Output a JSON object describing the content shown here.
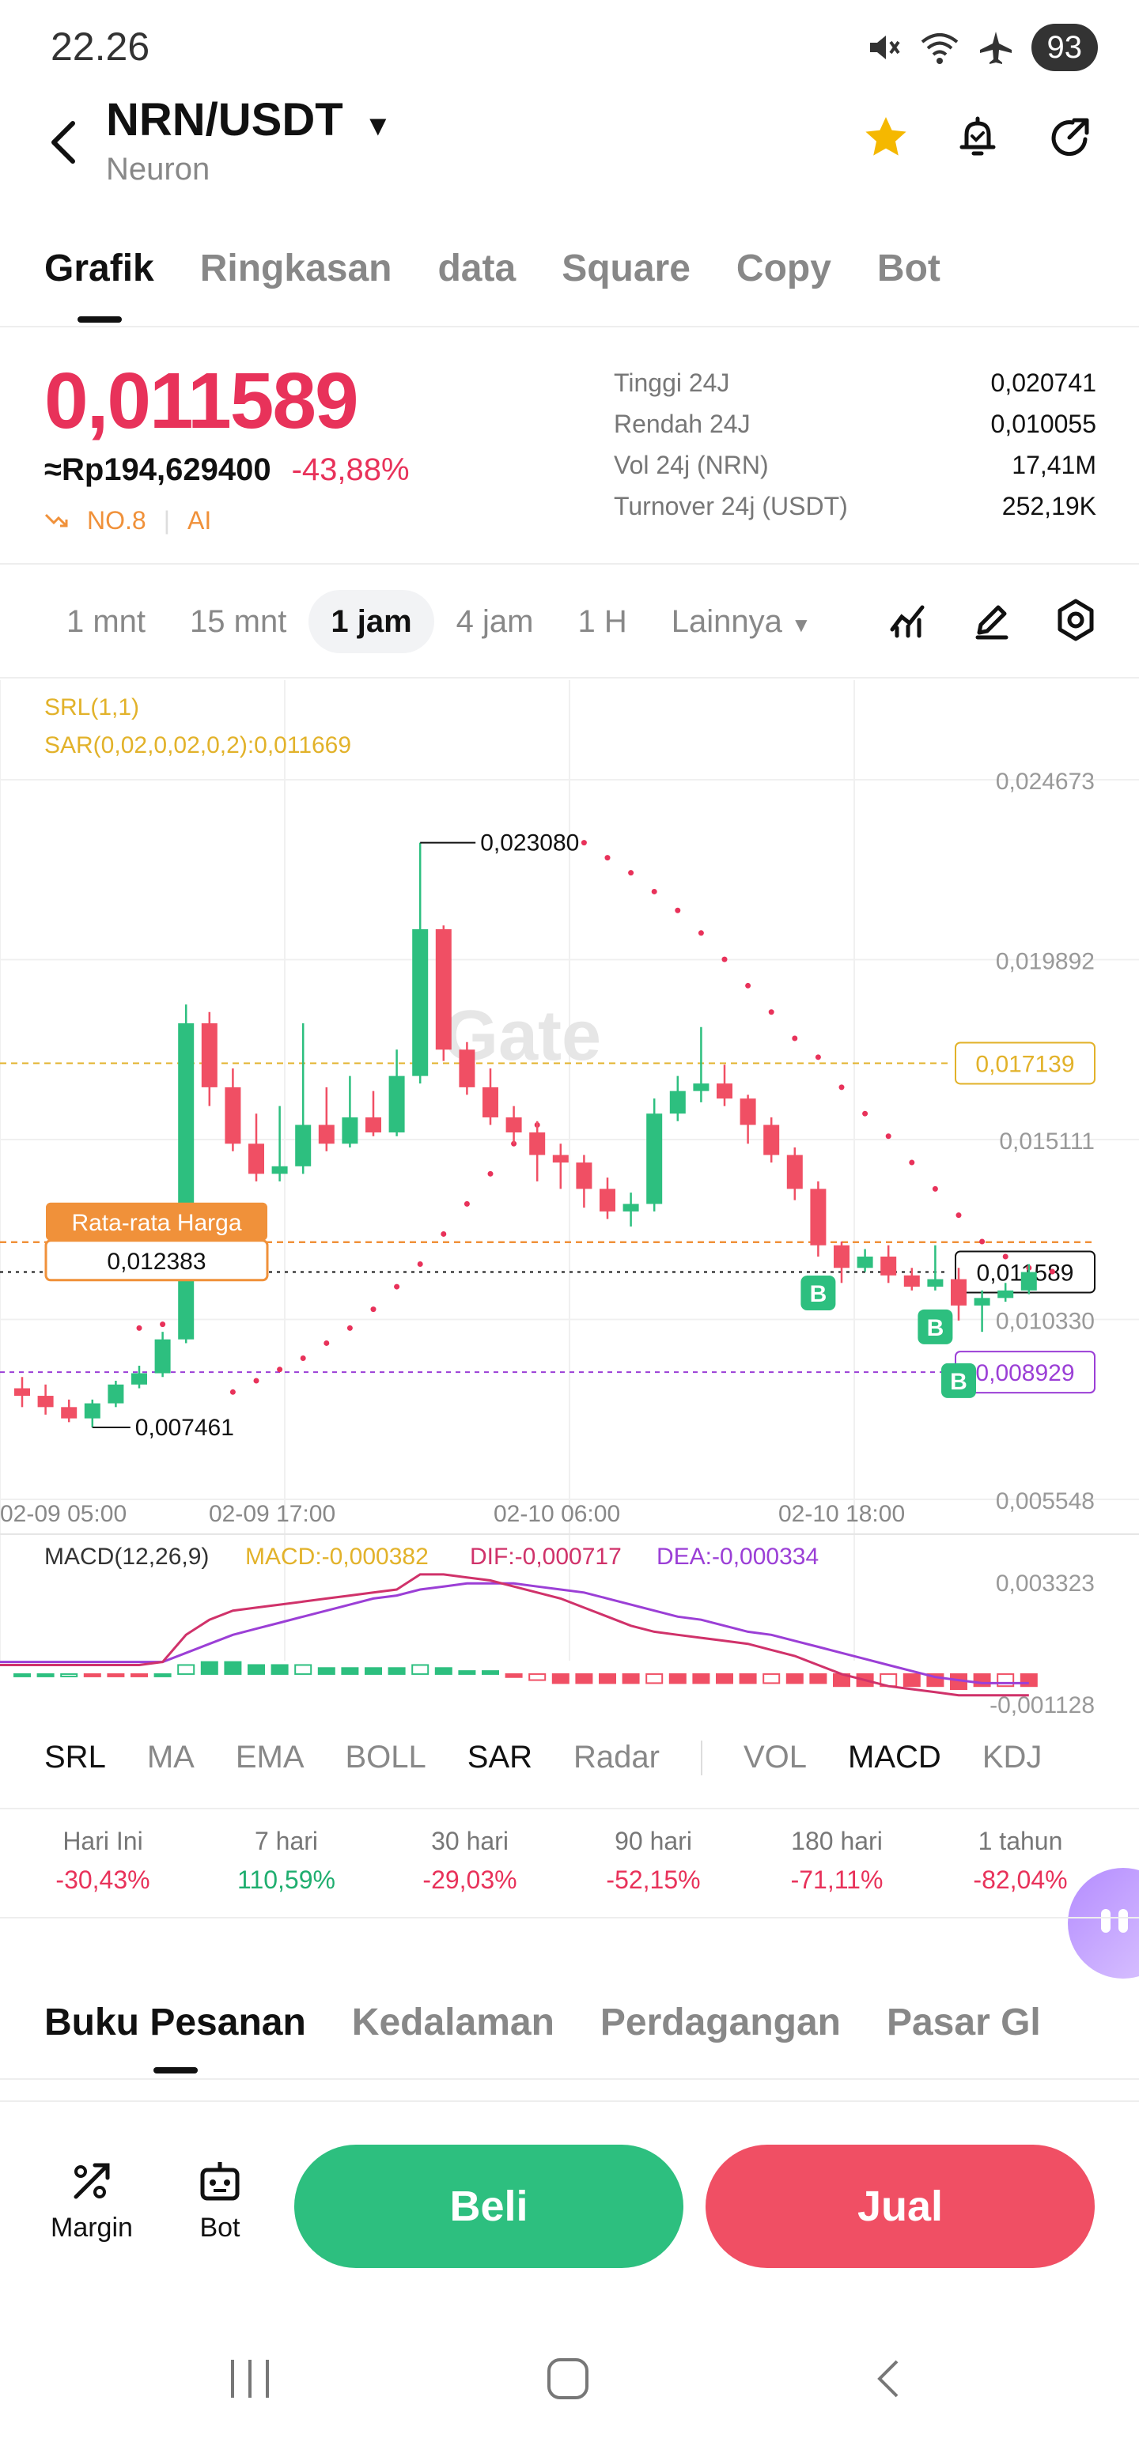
{
  "status_bar": {
    "time": "22.26",
    "battery": "93",
    "icons": [
      "mute-icon",
      "wifi-icon",
      "airplane-icon"
    ]
  },
  "header": {
    "pair": "NRN/USDT",
    "subtitle": "Neuron",
    "icons": [
      "star-icon",
      "bell-icon",
      "share-icon"
    ]
  },
  "tabs": [
    "Grafik",
    "Ringkasan",
    "data",
    "Square",
    "Copy",
    "Bot"
  ],
  "price": {
    "last": "0,011589",
    "fiat": "≈Rp194,629400",
    "change": "-43,88%",
    "rank": "NO.8",
    "ai": "AI"
  },
  "stats": [
    {
      "label": "Tinggi 24J",
      "value": "0,020741"
    },
    {
      "label": "Rendah 24J",
      "value": "0,010055"
    },
    {
      "label": "Vol 24j (NRN)",
      "value": "17,41M"
    },
    {
      "label": "Turnover 24j (USDT)",
      "value": "252,19K"
    }
  ],
  "intervals": {
    "items": [
      "1 mnt",
      "15 mnt",
      "1 jam",
      "4 jam",
      "1 H"
    ],
    "active": "1 jam",
    "more": "Lainnya"
  },
  "chart": {
    "indicator_srl": "SRL(1,1)",
    "indicator_sar": "SAR(0,02,0,02,0,2):0,011669",
    "y_ticks": [
      "0,024673",
      "0,019892",
      "0,015111",
      "0,010330",
      "0,005548"
    ],
    "y_tick_values": [
      0.024673,
      0.019892,
      0.015111,
      0.01033,
      0.005548
    ],
    "x_ticks": [
      "02-09 05:00",
      "02-09 17:00",
      "02-10 06:00",
      "02-10 18:00"
    ],
    "high_label": "0,023080",
    "low_label": "0,007461",
    "level_yellow": "0,017139",
    "level_current": "0,011589",
    "level_purple": "0,008929",
    "avg_price_title": "Rata-rata Harga",
    "avg_price_value": "0,012383",
    "buy_marker": "B",
    "watermark": "Gate"
  },
  "chart_data": {
    "type": "candlestick",
    "ylim": [
      0.005548,
      0.024673
    ],
    "candles": [
      {
        "o": 0.0085,
        "h": 0.0088,
        "l": 0.008,
        "c": 0.0083
      },
      {
        "o": 0.0083,
        "h": 0.0086,
        "l": 0.0078,
        "c": 0.008
      },
      {
        "o": 0.008,
        "h": 0.0082,
        "l": 0.0076,
        "c": 0.0077
      },
      {
        "o": 0.0077,
        "h": 0.0082,
        "l": 0.007461,
        "c": 0.0081
      },
      {
        "o": 0.0081,
        "h": 0.0087,
        "l": 0.008,
        "c": 0.0086
      },
      {
        "o": 0.0086,
        "h": 0.0091,
        "l": 0.0085,
        "c": 0.0089
      },
      {
        "o": 0.0089,
        "h": 0.01,
        "l": 0.0088,
        "c": 0.0098
      },
      {
        "o": 0.0098,
        "h": 0.0187,
        "l": 0.0097,
        "c": 0.0182
      },
      {
        "o": 0.0182,
        "h": 0.0185,
        "l": 0.016,
        "c": 0.0165
      },
      {
        "o": 0.0165,
        "h": 0.017,
        "l": 0.0148,
        "c": 0.015
      },
      {
        "o": 0.015,
        "h": 0.0158,
        "l": 0.014,
        "c": 0.0142
      },
      {
        "o": 0.0142,
        "h": 0.016,
        "l": 0.014,
        "c": 0.0144
      },
      {
        "o": 0.0144,
        "h": 0.0182,
        "l": 0.0142,
        "c": 0.0155
      },
      {
        "o": 0.0155,
        "h": 0.0165,
        "l": 0.0148,
        "c": 0.015
      },
      {
        "o": 0.015,
        "h": 0.0168,
        "l": 0.0149,
        "c": 0.0157
      },
      {
        "o": 0.0157,
        "h": 0.0164,
        "l": 0.0152,
        "c": 0.0153
      },
      {
        "o": 0.0153,
        "h": 0.0175,
        "l": 0.0152,
        "c": 0.0168
      },
      {
        "o": 0.0168,
        "h": 0.023,
        "l": 0.0166,
        "c": 0.0207
      },
      {
        "o": 0.0207,
        "h": 0.0208,
        "l": 0.0172,
        "c": 0.0175
      },
      {
        "o": 0.0175,
        "h": 0.0177,
        "l": 0.0163,
        "c": 0.0165
      },
      {
        "o": 0.0165,
        "h": 0.017,
        "l": 0.0155,
        "c": 0.0157
      },
      {
        "o": 0.0157,
        "h": 0.016,
        "l": 0.015,
        "c": 0.0153
      },
      {
        "o": 0.0153,
        "h": 0.0156,
        "l": 0.014,
        "c": 0.0147
      },
      {
        "o": 0.0147,
        "h": 0.015,
        "l": 0.0138,
        "c": 0.0145
      },
      {
        "o": 0.0145,
        "h": 0.0147,
        "l": 0.0133,
        "c": 0.0138
      },
      {
        "o": 0.0138,
        "h": 0.0141,
        "l": 0.013,
        "c": 0.0132
      },
      {
        "o": 0.0132,
        "h": 0.0137,
        "l": 0.0128,
        "c": 0.0134
      },
      {
        "o": 0.0134,
        "h": 0.0162,
        "l": 0.0132,
        "c": 0.0158
      },
      {
        "o": 0.0158,
        "h": 0.0168,
        "l": 0.0156,
        "c": 0.0164
      },
      {
        "o": 0.0164,
        "h": 0.0181,
        "l": 0.0161,
        "c": 0.0166
      },
      {
        "o": 0.0166,
        "h": 0.0171,
        "l": 0.016,
        "c": 0.0162
      },
      {
        "o": 0.0162,
        "h": 0.0163,
        "l": 0.015,
        "c": 0.0155
      },
      {
        "o": 0.0155,
        "h": 0.0157,
        "l": 0.0145,
        "c": 0.0147
      },
      {
        "o": 0.0147,
        "h": 0.0149,
        "l": 0.0135,
        "c": 0.0138
      },
      {
        "o": 0.0138,
        "h": 0.014,
        "l": 0.012,
        "c": 0.0123
      },
      {
        "o": 0.0123,
        "h": 0.0124,
        "l": 0.0113,
        "c": 0.0117
      },
      {
        "o": 0.0117,
        "h": 0.0122,
        "l": 0.0116,
        "c": 0.012
      },
      {
        "o": 0.012,
        "h": 0.0123,
        "l": 0.0113,
        "c": 0.0115
      },
      {
        "o": 0.0115,
        "h": 0.0117,
        "l": 0.0111,
        "c": 0.0112
      },
      {
        "o": 0.0112,
        "h": 0.0123,
        "l": 0.0111,
        "c": 0.0114
      },
      {
        "o": 0.0114,
        "h": 0.0117,
        "l": 0.0103,
        "c": 0.0107
      },
      {
        "o": 0.0107,
        "h": 0.0111,
        "l": 0.01,
        "c": 0.0109
      },
      {
        "o": 0.0109,
        "h": 0.0113,
        "l": 0.0108,
        "c": 0.0111
      },
      {
        "o": 0.0111,
        "h": 0.0118,
        "l": 0.011,
        "c": 0.011589
      }
    ],
    "sar_points": [
      [
        5,
        0.0101
      ],
      [
        6,
        0.0102
      ],
      [
        9,
        0.0084
      ],
      [
        10,
        0.0087
      ],
      [
        11,
        0.009
      ],
      [
        12,
        0.0093
      ],
      [
        13,
        0.0097
      ],
      [
        14,
        0.0101
      ],
      [
        15,
        0.0106
      ],
      [
        16,
        0.0112
      ],
      [
        17,
        0.0118
      ],
      [
        18,
        0.0126
      ],
      [
        19,
        0.0134
      ],
      [
        20,
        0.0142
      ],
      [
        21,
        0.015
      ],
      [
        22,
        0.0155
      ],
      [
        24,
        0.023
      ],
      [
        25,
        0.0226
      ],
      [
        26,
        0.0222
      ],
      [
        27,
        0.0217
      ],
      [
        28,
        0.0212
      ],
      [
        29,
        0.0206
      ],
      [
        30,
        0.0199
      ],
      [
        31,
        0.0192
      ],
      [
        32,
        0.0185
      ],
      [
        33,
        0.0178
      ],
      [
        34,
        0.0173
      ],
      [
        35,
        0.0165
      ],
      [
        36,
        0.0158
      ],
      [
        37,
        0.0152
      ],
      [
        38,
        0.0145
      ],
      [
        39,
        0.0138
      ],
      [
        40,
        0.0131
      ],
      [
        41,
        0.0124
      ],
      [
        42,
        0.012
      ],
      [
        43,
        0.0117
      ],
      [
        44,
        0.0116
      ]
    ],
    "buy_marker_candles": [
      34,
      39,
      40
    ]
  },
  "macd": {
    "title": "MACD(12,26,9)",
    "macd": "MACD:-0,000382",
    "dif": "DIF:-0,000717",
    "dea": "DEA:-0,000334",
    "y_top": "0,003323",
    "y_bottom": "-0,001128",
    "ylim": [
      -0.001128,
      0.003323
    ],
    "dif_values": [
      0.0003,
      0.0003,
      0.0003,
      0.0003,
      0.0003,
      0.0003,
      0.0004,
      0.0013,
      0.0018,
      0.0021,
      0.0022,
      0.0023,
      0.0024,
      0.0025,
      0.0026,
      0.0027,
      0.0028,
      0.0033,
      0.0033,
      0.0032,
      0.0031,
      0.0029,
      0.0027,
      0.0025,
      0.0022,
      0.0019,
      0.0016,
      0.0014,
      0.0013,
      0.0012,
      0.0011,
      0.001,
      0.0008,
      0.0006,
      0.0003,
      0.0,
      -0.0002,
      -0.0004,
      -0.0005,
      -0.0006,
      -0.0007,
      -0.0007,
      -0.0007,
      -0.0007
    ],
    "dea_values": [
      0.0004,
      0.0004,
      0.0004,
      0.0004,
      0.0004,
      0.0004,
      0.0004,
      0.0007,
      0.001,
      0.0013,
      0.0015,
      0.0017,
      0.0019,
      0.0021,
      0.0023,
      0.0025,
      0.0026,
      0.0028,
      0.0029,
      0.003,
      0.003,
      0.003,
      0.0029,
      0.0028,
      0.0027,
      0.0025,
      0.0023,
      0.0021,
      0.0019,
      0.0018,
      0.0016,
      0.0014,
      0.0013,
      0.0011,
      0.0009,
      0.0007,
      0.0005,
      0.0003,
      0.0001,
      -0.0001,
      -0.0002,
      -0.0003,
      -0.0003,
      -0.0003
    ],
    "hist_values": [
      0,
      0,
      0,
      -5e-05,
      -5e-05,
      -5e-05,
      0,
      0.0003,
      0.0004,
      0.0004,
      0.0003,
      0.0003,
      0.0003,
      0.0002,
      0.0002,
      0.0002,
      0.0002,
      0.0003,
      0.0002,
      0.0001,
      0.0001,
      -0.0001,
      -0.0002,
      -0.0003,
      -0.0003,
      -0.0003,
      -0.0003,
      -0.0003,
      -0.0003,
      -0.0003,
      -0.0003,
      -0.0003,
      -0.0003,
      -0.0003,
      -0.0003,
      -0.0004,
      -0.0004,
      -0.0004,
      -0.0004,
      -0.0004,
      -0.0005,
      -0.0004,
      -0.0004,
      -0.0004
    ]
  },
  "indicators": {
    "main": [
      "SRL",
      "MA",
      "EMA",
      "BOLL",
      "SAR",
      "Radar"
    ],
    "main_on": [
      "SRL",
      "SAR"
    ],
    "sub": [
      "VOL",
      "MACD",
      "KDJ"
    ],
    "sub_on": [
      "MACD"
    ]
  },
  "performance": [
    {
      "label": "Hari Ini",
      "value": "-30,43%",
      "dir": "neg"
    },
    {
      "label": "7 hari",
      "value": "110,59%",
      "dir": "pos"
    },
    {
      "label": "30 hari",
      "value": "-29,03%",
      "dir": "neg"
    },
    {
      "label": "90 hari",
      "value": "-52,15%",
      "dir": "neg"
    },
    {
      "label": "180 hari",
      "value": "-71,11%",
      "dir": "neg"
    },
    {
      "label": "1 tahun",
      "value": "-82,04%",
      "dir": "neg"
    }
  ],
  "orderbook_tabs": [
    "Buku Pesanan",
    "Kedalaman",
    "Perdagangan",
    "Pasar Gl"
  ],
  "bottom": {
    "margin": "Margin",
    "bot": "Bot",
    "buy": "Beli",
    "sell": "Jual"
  },
  "colors": {
    "up": "#2dbf7f",
    "down": "#f04f64",
    "price_red": "#e8325a",
    "sar": "#e8325a",
    "yellow": "#e2b22a",
    "purple": "#9b3fd6",
    "orange": "#f0913a"
  }
}
